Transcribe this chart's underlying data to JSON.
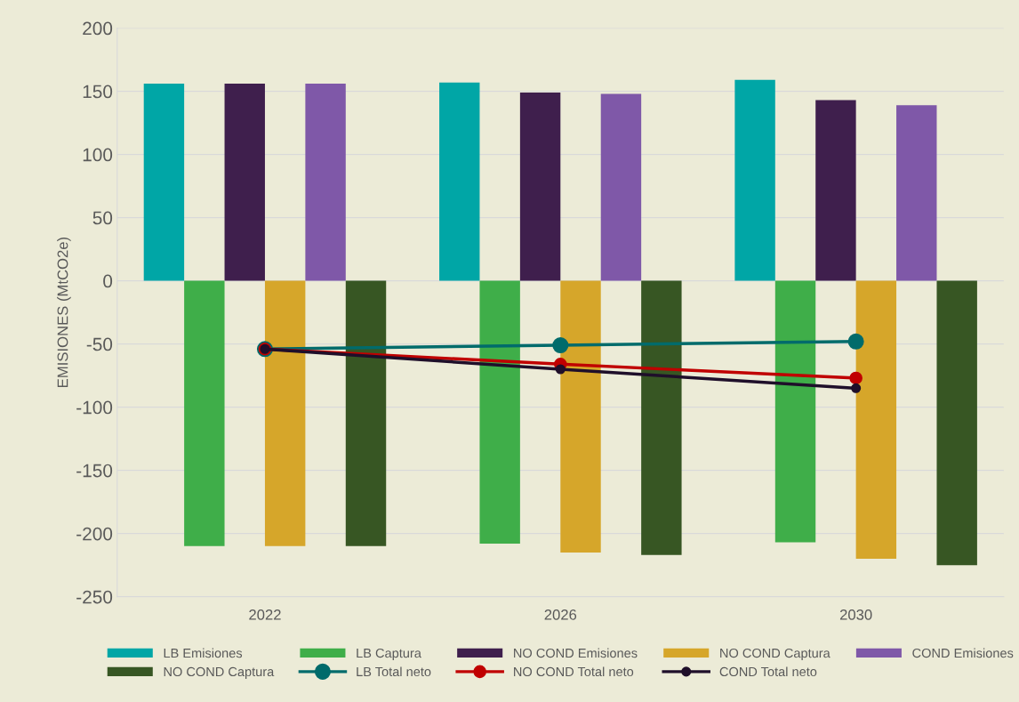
{
  "chart_data": {
    "type": "bar",
    "ylabel": "EMISIONES (MtCO2e)",
    "categories": [
      "2022",
      "2026",
      "2030"
    ],
    "ylim": [
      -250,
      200
    ],
    "yticks": [
      -250,
      -200,
      -150,
      -100,
      -50,
      0,
      50,
      100,
      150,
      200
    ],
    "grid": "y",
    "legend": "bottom",
    "series": [
      {
        "name": "LB Emisiones",
        "color": "#00a6a6",
        "values": [
          156,
          157,
          159
        ]
      },
      {
        "name": "LB Captura",
        "color": "#3fae49",
        "values": [
          -210,
          -208,
          -207
        ]
      },
      {
        "name": "NO COND Emisiones",
        "color": "#3f1f4d",
        "values": [
          156,
          149,
          143
        ]
      },
      {
        "name": "NO COND Captura",
        "color": "#d6a62a",
        "values": [
          -210,
          -215,
          -220
        ]
      },
      {
        "name": "COND Emisiones",
        "color": "#7f58a8",
        "values": [
          156,
          148,
          139
        ]
      },
      {
        "name": "NO COND Captura",
        "color": "#375623",
        "values": [
          -210,
          -217,
          -225
        ]
      },
      {
        "name": "LB Total neto",
        "type": "line",
        "marker": "circle",
        "color": "#006b6b",
        "values": [
          -54,
          -51,
          -48
        ]
      },
      {
        "name": "NO COND Total neto",
        "type": "line",
        "marker": "circle",
        "color": "#c00000",
        "values": [
          -54,
          -66,
          -77
        ]
      },
      {
        "name": "COND Total neto",
        "type": "line",
        "marker": "circle",
        "color": "#1f0f2a",
        "values": [
          -54,
          -70,
          -85
        ]
      }
    ]
  }
}
